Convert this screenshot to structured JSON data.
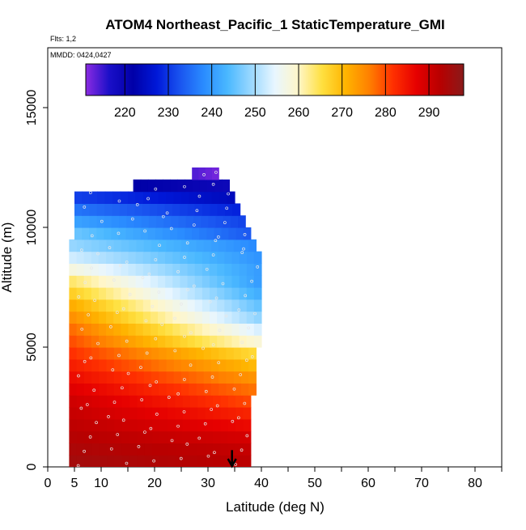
{
  "chart_data": {
    "type": "heatmap",
    "title": "ATOM4 Northeast_Pacific_1 StaticTemperature_GMI",
    "flights_label": "Flts: 1,2",
    "dates_label": "MMDD: 0424,0427",
    "xlabel": "Latitude (deg N)",
    "ylabel": "Altitude (m)",
    "xlim": [
      0,
      85
    ],
    "ylim": [
      0,
      17500
    ],
    "x_ticks": [
      0,
      5,
      10,
      20,
      30,
      40,
      50,
      60,
      70,
      80
    ],
    "x_minor_ticks": [
      15,
      25,
      35,
      45,
      55,
      65,
      75,
      85
    ],
    "y_ticks": [
      0,
      5000,
      10000,
      15000
    ],
    "colorbar": {
      "range": [
        211,
        298
      ],
      "ticks": [
        220,
        230,
        240,
        250,
        260,
        270,
        280,
        290
      ],
      "colors": [
        "#8b2be2",
        "#1a0fc8",
        "#0000a8",
        "#0018d8",
        "#1a55f0",
        "#2a8cff",
        "#4ab8ff",
        "#9ad8ff",
        "#e8f6ff",
        "#fff6c8",
        "#ffe040",
        "#ffb400",
        "#ff8000",
        "#ff3000",
        "#e60000",
        "#b80000",
        "#8a1a1a"
      ]
    },
    "layers": [
      {
        "alt": 250,
        "lat": [
          4,
          38
        ],
        "t": [
          295,
          292
        ]
      },
      {
        "alt": 750,
        "lat": [
          4,
          38
        ],
        "t": [
          294,
          291
        ]
      },
      {
        "alt": 1250,
        "lat": [
          4,
          38
        ],
        "t": [
          293,
          289
        ]
      },
      {
        "alt": 1750,
        "lat": [
          4,
          38
        ],
        "t": [
          292,
          286
        ]
      },
      {
        "alt": 2250,
        "lat": [
          4,
          38
        ],
        "t": [
          291,
          283
        ]
      },
      {
        "alt": 2750,
        "lat": [
          4,
          38
        ],
        "t": [
          290,
          280
        ]
      },
      {
        "alt": 3250,
        "lat": [
          4,
          39
        ],
        "t": [
          288,
          277
        ]
      },
      {
        "alt": 3750,
        "lat": [
          4,
          39
        ],
        "t": [
          286,
          274
        ]
      },
      {
        "alt": 4250,
        "lat": [
          4,
          39
        ],
        "t": [
          284,
          270
        ]
      },
      {
        "alt": 4750,
        "lat": [
          4,
          39
        ],
        "t": [
          282,
          266
        ]
      },
      {
        "alt": 5250,
        "lat": [
          4,
          40
        ],
        "t": [
          280,
          258
        ]
      },
      {
        "alt": 5750,
        "lat": [
          4,
          40
        ],
        "t": [
          278,
          253
        ]
      },
      {
        "alt": 6250,
        "lat": [
          4,
          40
        ],
        "t": [
          275,
          248
        ]
      },
      {
        "alt": 6750,
        "lat": [
          4,
          40
        ],
        "t": [
          272,
          245
        ]
      },
      {
        "alt": 7250,
        "lat": [
          4,
          40
        ],
        "t": [
          268,
          242
        ]
      },
      {
        "alt": 7750,
        "lat": [
          4,
          40
        ],
        "t": [
          264,
          240
        ]
      },
      {
        "alt": 8250,
        "lat": [
          4,
          40
        ],
        "t": [
          258,
          240
        ]
      },
      {
        "alt": 8750,
        "lat": [
          4,
          40
        ],
        "t": [
          253,
          239
        ]
      },
      {
        "alt": 9250,
        "lat": [
          4,
          39
        ],
        "t": [
          249,
          238
        ]
      },
      {
        "alt": 9750,
        "lat": [
          5,
          38
        ],
        "t": [
          246,
          233
        ]
      },
      {
        "alt": 10250,
        "lat": [
          5,
          37
        ],
        "t": [
          241,
          231
        ]
      },
      {
        "alt": 10750,
        "lat": [
          5,
          36
        ],
        "t": [
          236,
          228
        ]
      },
      {
        "alt": 11250,
        "lat": [
          5,
          35
        ],
        "t": [
          231,
          224
        ]
      },
      {
        "alt": 11750,
        "lat": [
          16,
          34
        ],
        "t": [
          222,
          219
        ]
      },
      {
        "alt": 12250,
        "lat": [
          27,
          32
        ],
        "t": [
          214,
          212
        ]
      }
    ],
    "marker": {
      "lat": 34.5,
      "alt_top": 700,
      "alt_bottom": 0
    }
  }
}
